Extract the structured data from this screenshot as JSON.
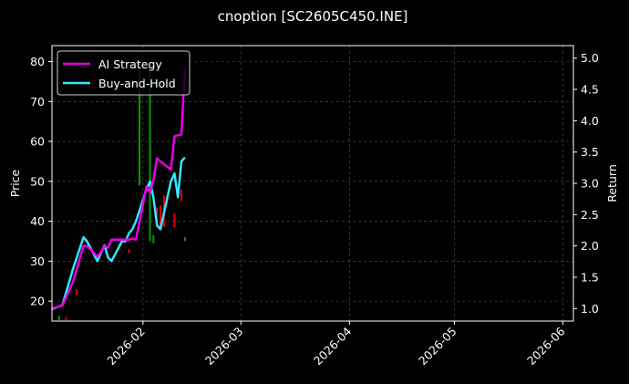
{
  "chart_data": {
    "type": "line",
    "title": "cnoption [SC2605C450.INE]",
    "ylabel": "Price",
    "y2label": "Return",
    "x_range": [
      "2026-01-06",
      "2026-06-04"
    ],
    "ylim": [
      15,
      84
    ],
    "y2lim": [
      0.8,
      5.2
    ],
    "grid": true,
    "legend_placement": "upper-left",
    "x_ticks": [
      "2026-02",
      "2026-03",
      "2026-04",
      "2026-05",
      "2026-06"
    ],
    "y_ticks": [
      20,
      30,
      40,
      50,
      60,
      70,
      80
    ],
    "y2_ticks": [
      "1.0",
      "1.5",
      "2.0",
      "2.5",
      "3.0",
      "3.5",
      "4.0",
      "4.5",
      "5.0"
    ],
    "series": [
      {
        "name": "AI Strategy",
        "axis": "right",
        "color": "#e600e6",
        "x": [
          "2026-01-06",
          "2026-01-09",
          "2026-01-12",
          "2026-01-15",
          "2026-01-16",
          "2026-01-19",
          "2026-01-20",
          "2026-01-21",
          "2026-01-22",
          "2026-01-23",
          "2026-01-26",
          "2026-01-27",
          "2026-01-28",
          "2026-01-29",
          "2026-01-30",
          "2026-02-02",
          "2026-02-03",
          "2026-02-04",
          "2026-02-05",
          "2026-02-06",
          "2026-02-09",
          "2026-02-10",
          "2026-02-11",
          "2026-02-12",
          "2026-02-13"
        ],
        "values": [
          1.0,
          1.05,
          1.42,
          2.0,
          2.0,
          1.83,
          1.9,
          2.0,
          1.97,
          2.1,
          2.1,
          2.1,
          2.1,
          2.12,
          2.1,
          2.95,
          2.85,
          3.05,
          3.4,
          3.35,
          3.22,
          3.75,
          3.77,
          3.78,
          4.85
        ]
      },
      {
        "name": "Buy-and-Hold",
        "axis": "left",
        "color": "#33e5ff",
        "x": [
          "2026-01-06",
          "2026-01-09",
          "2026-01-12",
          "2026-01-15",
          "2026-01-16",
          "2026-01-19",
          "2026-01-20",
          "2026-01-21",
          "2026-01-22",
          "2026-01-23",
          "2026-01-26",
          "2026-01-27",
          "2026-01-28",
          "2026-01-29",
          "2026-01-30",
          "2026-02-02",
          "2026-02-03",
          "2026-02-04",
          "2026-02-05",
          "2026-02-06",
          "2026-02-09",
          "2026-02-10",
          "2026-02-11",
          "2026-02-12",
          "2026-02-13"
        ],
        "values": [
          18,
          19,
          28,
          36,
          35,
          30,
          32,
          34,
          31,
          30,
          35,
          35,
          37,
          38,
          40,
          48,
          50,
          46,
          39,
          38,
          50,
          52,
          46,
          55,
          56
        ]
      }
    ],
    "volume_bars": [
      {
        "x": "2026-01-08",
        "y0": 15.2,
        "y1": 16.3,
        "color": "#00a000"
      },
      {
        "x": "2026-01-10",
        "y0": 15.2,
        "y1": 16.0,
        "color": "#e00000"
      },
      {
        "x": "2026-01-13",
        "y0": 21.5,
        "y1": 23.0,
        "color": "#e00000"
      },
      {
        "x": "2026-01-28",
        "y0": 32.0,
        "y1": 33.0,
        "color": "#e00000"
      },
      {
        "x": "2026-01-31",
        "y0": 49.0,
        "y1": 80.0,
        "color": "#00a000"
      },
      {
        "x": "2026-02-03",
        "y0": 35.0,
        "y1": 80.0,
        "color": "#00a000"
      },
      {
        "x": "2026-02-04",
        "y0": 34.5,
        "y1": 36.5,
        "color": "#00a000"
      },
      {
        "x": "2026-02-05",
        "y0": 38.5,
        "y1": 43.5,
        "color": "#e00000"
      },
      {
        "x": "2026-02-06",
        "y0": 38.0,
        "y1": 44.0,
        "color": "#e00000"
      },
      {
        "x": "2026-02-07",
        "y0": 38.5,
        "y1": 46.5,
        "color": "#e00000"
      },
      {
        "x": "2026-02-10",
        "y0": 38.5,
        "y1": 42.0,
        "color": "#e00000"
      },
      {
        "x": "2026-02-12",
        "y0": 45.0,
        "y1": 48.0,
        "color": "#e00000"
      },
      {
        "x": "2026-02-13",
        "y0": 35.0,
        "y1": 36.0,
        "color": "#00a000"
      }
    ]
  }
}
